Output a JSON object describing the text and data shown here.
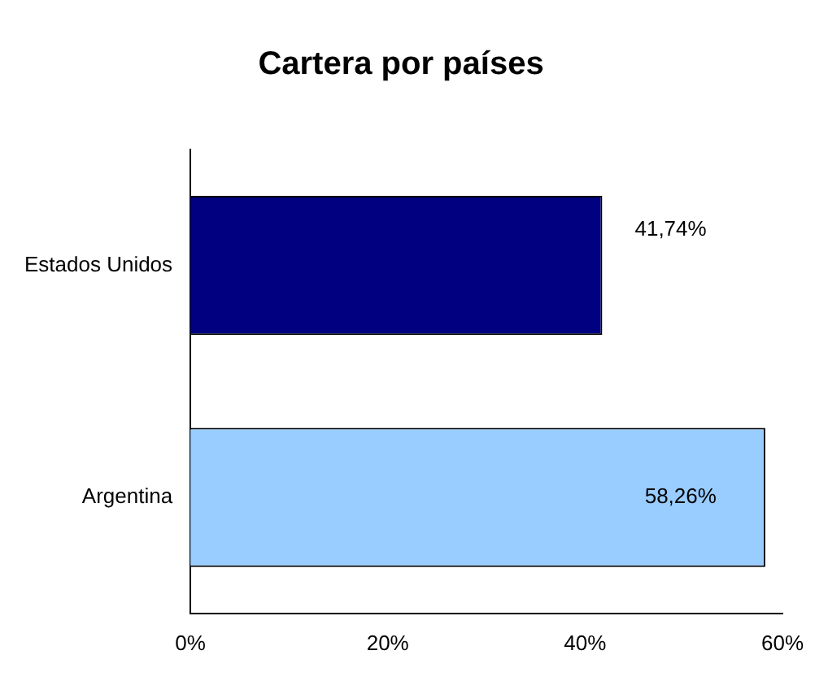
{
  "chart_data": {
    "type": "bar",
    "orientation": "horizontal",
    "title": "Cartera por países",
    "categories": [
      "Estados Unidos",
      "Argentina"
    ],
    "values": [
      41.74,
      58.26
    ],
    "colors": [
      "#000080",
      "#99ccff"
    ],
    "value_labels": [
      "41,74%",
      "58,26%"
    ],
    "xlim": [
      0,
      60
    ],
    "xticks": [
      {
        "value": 0,
        "label": "0%"
      },
      {
        "value": 20,
        "label": "20%"
      },
      {
        "value": 40,
        "label": "40%"
      },
      {
        "value": 60,
        "label": "60%"
      }
    ],
    "grid": false,
    "legend": false
  }
}
